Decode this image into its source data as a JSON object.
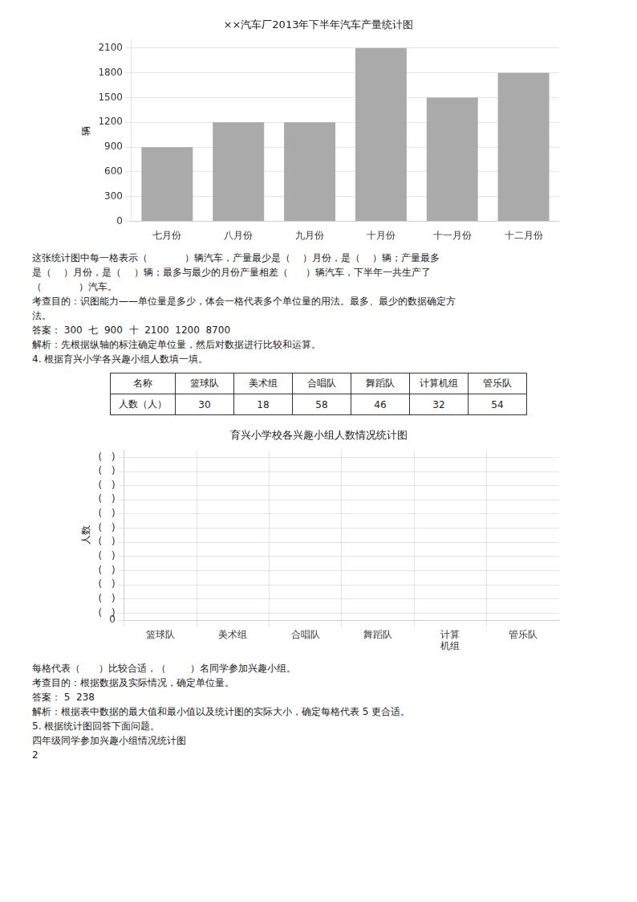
{
  "chart_data": [
    {
      "type": "bar",
      "title": "××汽车厂2013年下半年汽车产量统计图",
      "ylabel": "辆",
      "categories": [
        "七月份",
        "八月份",
        "九月份",
        "十月份",
        "十一月份",
        "十二月份"
      ],
      "values": [
        900,
        1200,
        1200,
        2100,
        1500,
        1800
      ],
      "color": "#aaaaaa",
      "ylim": [
        0,
        2200
      ],
      "yticks": [
        0,
        300,
        600,
        900,
        1200,
        1500,
        1800,
        2100
      ],
      "grid": "y",
      "annotations": [
        "这张统计图中每一格表示（            ）辆汽车，产量最少是（    ）月份，是（    ）辆；产量最多",
        "是（    ）月份，是（    ）辆；最多与最少的月份产量相差（      ）辆汽车，下半年一共生产了",
        "（            ）汽车。",
        "考查目的：识图能力——单位量是多少，体会一格代表多个单位量的用法。最多、最少的数据确定方",
        "法。",
        "答案： 300  七  900  十  2100  1200  8700",
        "解析：先根据纵轴的标注确定单位量，然后对数据进行比较和运算。",
        "4. 根据育兴小学各兴趣小组人数填一填。"
      ]
    },
    {
      "type": "bar",
      "title": "育兴小学校各兴趣小组人数情况统计图",
      "ylabel": "人数",
      "categories": [
        "篮球队",
        "美术组",
        "合唱队",
        "舞蹈队",
        "计算\n机组",
        "管乐队"
      ],
      "values": [
        null,
        null,
        null,
        null,
        null,
        null
      ],
      "ylim": [
        0,
        12
      ],
      "yticks": [
        0,
        {
          "value": 0.5,
          "label": "(　)"
        },
        {
          "value": 1.5,
          "label": "(　)"
        },
        {
          "value": 2.5,
          "label": "(　)"
        },
        {
          "value": 3.5,
          "label": "(　)"
        },
        {
          "value": 4.5,
          "label": "(　)"
        },
        {
          "value": 5.5,
          "label": "(　)"
        },
        {
          "value": 6.5,
          "label": "(　)"
        },
        {
          "value": 7.5,
          "label": "(　)"
        },
        {
          "value": 8.5,
          "label": "(　)"
        },
        {
          "value": 9.5,
          "label": "(　)"
        },
        {
          "value": 10.5,
          "label": "(　)"
        },
        {
          "value": 11.5,
          "label": "(　)"
        }
      ],
      "grid": true,
      "table": {
        "headers": [
          "名称",
          "篮球队",
          "美术组",
          "合唱队",
          "舞蹈队",
          "计算机组",
          "管乐队"
        ],
        "row_label": "人数（人）",
        "values": [
          30,
          18,
          58,
          46,
          32,
          54
        ]
      },
      "annotations": [
        "每格代表（      ）比较合适，（        ）名同学参加兴趣小组。",
        "考查目的：根据数据及实际情况，确定单位量。",
        "答案： 5  238",
        "解析：根据表中数据的最大值和最小值以及统计图的实际大小，确定每格代表 5 更合适。",
        "5. 根据统计图回答下面问题。",
        "四年级同学参加兴趣小组情况统计图",
        "2"
      ]
    }
  ]
}
